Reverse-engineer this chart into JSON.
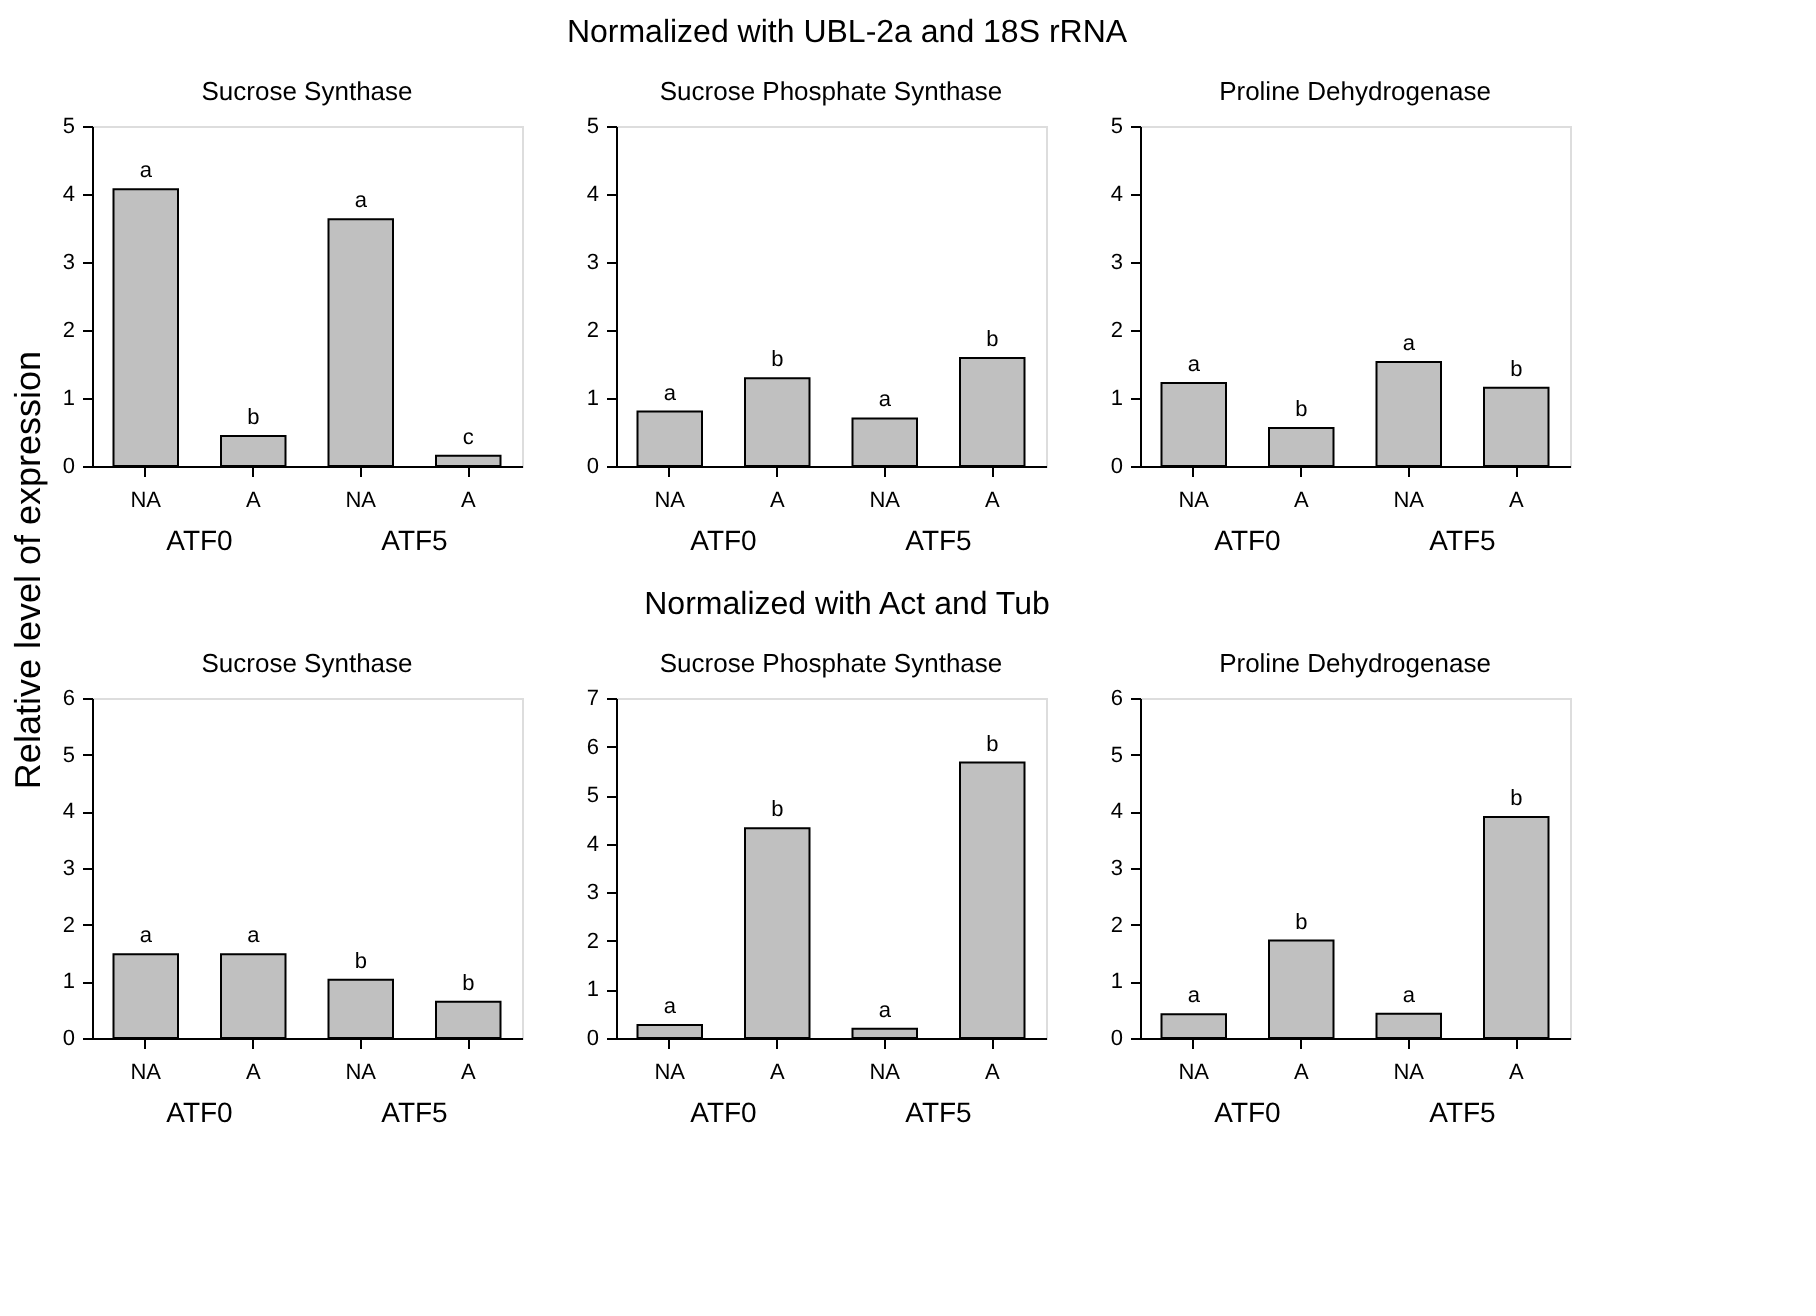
{
  "chart_data": [
    {
      "type": "bar",
      "title": "Sucrose Synthase",
      "ylabel": "Relative level of expression",
      "categories": [
        "NA",
        "A",
        "NA",
        "A"
      ],
      "values": [
        4.07,
        0.44,
        3.63,
        0.15
      ],
      "value_labels": [
        "a",
        "b",
        "a",
        "c"
      ],
      "color": "#c0c0c0",
      "ylim": [
        0,
        5
      ],
      "yticks": [
        0,
        1,
        2,
        3,
        4,
        5
      ],
      "grid": false,
      "annotations": [
        "ATF0",
        "ATF5"
      ]
    },
    {
      "type": "bar",
      "title": "Sucrose Phosphate Synthase",
      "subtitle": "Normalized with UBL-2a and 18S rRNA",
      "categories": [
        "NA",
        "A",
        "NA",
        "A"
      ],
      "values": [
        0.8,
        1.29,
        0.7,
        1.59
      ],
      "value_labels": [
        "a",
        "b",
        "a",
        "b"
      ],
      "color": "#c0c0c0",
      "ylim": [
        0,
        5
      ],
      "yticks": [
        0,
        1,
        2,
        3,
        4,
        5
      ],
      "grid": false,
      "annotations": [
        "ATF0",
        "ATF5"
      ]
    },
    {
      "type": "bar",
      "title": "Proline Dehydrogenase",
      "categories": [
        "NA",
        "A",
        "NA",
        "A"
      ],
      "values": [
        1.22,
        0.56,
        1.53,
        1.15
      ],
      "value_labels": [
        "a",
        "b",
        "a",
        "b"
      ],
      "color": "#c0c0c0",
      "ylim": [
        0,
        5
      ],
      "yticks": [
        0,
        1,
        2,
        3,
        4,
        5
      ],
      "grid": false,
      "annotations": [
        "ATF0",
        "ATF5"
      ]
    },
    {
      "type": "bar",
      "title": "Sucrose Synthase",
      "categories": [
        "NA",
        "A",
        "NA",
        "A"
      ],
      "values": [
        1.48,
        1.48,
        1.03,
        0.64
      ],
      "value_labels": [
        "a",
        "a",
        "b",
        "b"
      ],
      "color": "#c0c0c0",
      "ylim": [
        0,
        6
      ],
      "yticks": [
        0,
        1,
        2,
        3,
        4,
        5,
        6
      ],
      "grid": false,
      "annotations": [
        "ATF0",
        "ATF5"
      ]
    },
    {
      "type": "bar",
      "title": "Sucrose Phosphate Synthase",
      "subtitle": "Normalized with Act and Tub",
      "categories": [
        "NA",
        "A",
        "NA",
        "A"
      ],
      "values": [
        0.27,
        4.32,
        0.19,
        5.67
      ],
      "value_labels": [
        "a",
        "b",
        "a",
        "b"
      ],
      "color": "#c0c0c0",
      "ylim": [
        0,
        7
      ],
      "yticks": [
        0,
        1,
        2,
        3,
        4,
        5,
        6,
        7
      ],
      "grid": false,
      "annotations": [
        "ATF0",
        "ATF5"
      ]
    },
    {
      "type": "bar",
      "title": "Proline Dehydrogenase",
      "categories": [
        "NA",
        "A",
        "NA",
        "A"
      ],
      "values": [
        0.42,
        1.72,
        0.43,
        3.9
      ],
      "value_labels": [
        "a",
        "b",
        "a",
        "b"
      ],
      "color": "#c0c0c0",
      "ylim": [
        0,
        6
      ],
      "yticks": [
        0,
        1,
        2,
        3,
        4,
        5,
        6
      ],
      "grid": false,
      "annotations": [
        "ATF0",
        "ATF5"
      ]
    }
  ]
}
